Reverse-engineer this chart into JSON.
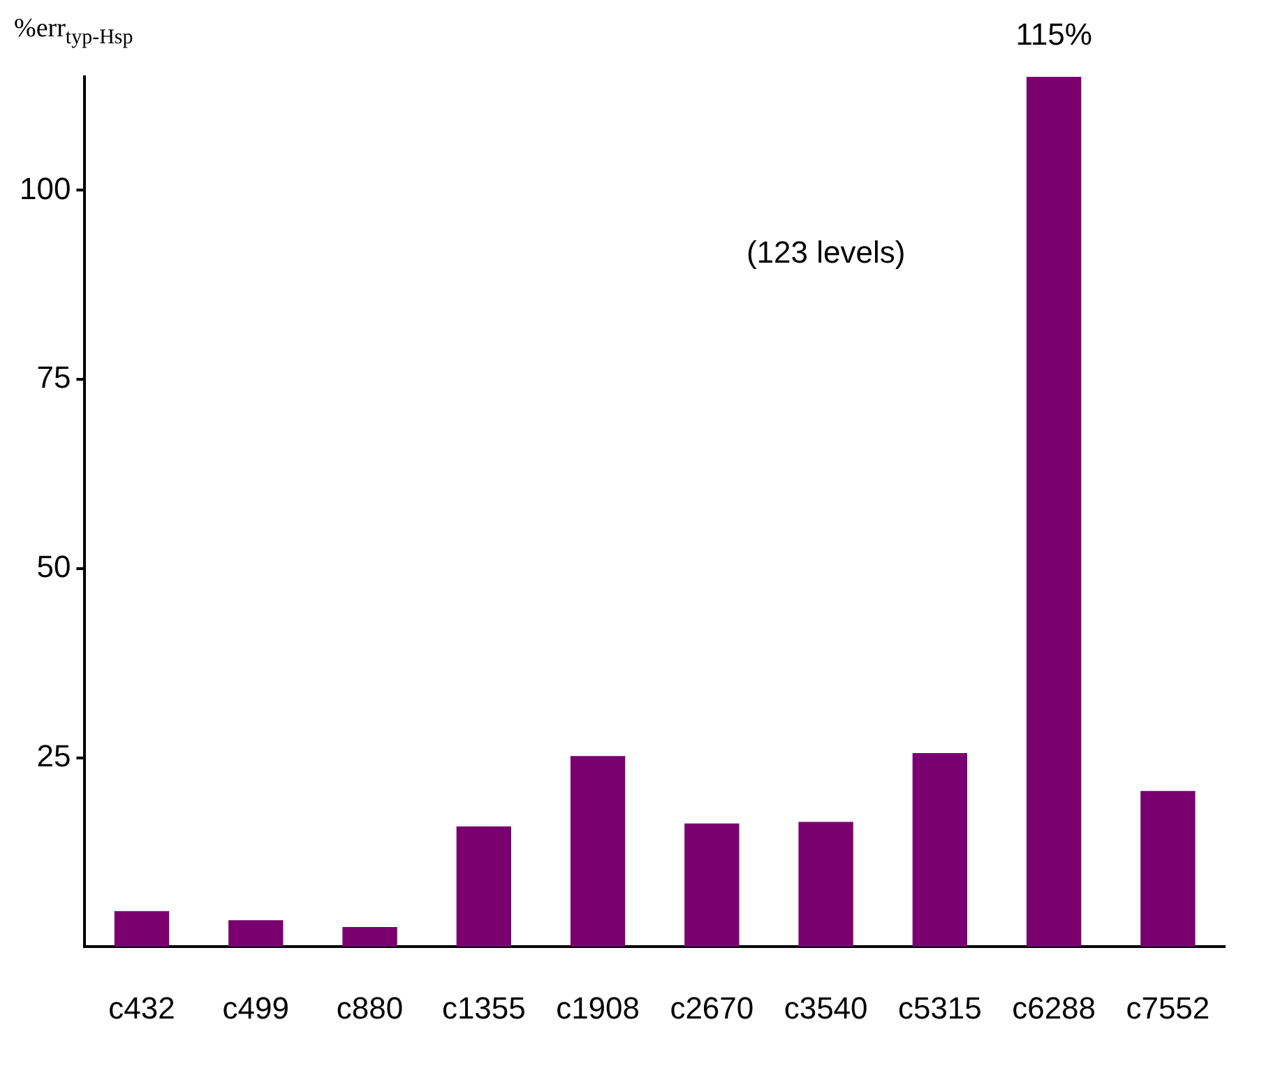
{
  "chart_data": {
    "type": "bar",
    "ylabel": "%err$_{typ-Hsp}$",
    "categories": [
      "c432",
      "c499",
      "c880",
      "c1355",
      "c1908",
      "c2670",
      "c3540",
      "c5315",
      "c6288",
      "c7552"
    ],
    "values": [
      4.7,
      3.5,
      2.6,
      15.9,
      25.2,
      16.3,
      16.5,
      25.6,
      115,
      20.6
    ],
    "value_labels": [
      null,
      null,
      null,
      null,
      null,
      null,
      null,
      null,
      "115%",
      null
    ],
    "color": "#7a0070",
    "ylim": [
      0,
      115
    ],
    "yticks": [
      25,
      50,
      75,
      100
    ],
    "annotations": [
      "(123 levels)"
    ],
    "grid": false,
    "legend": false
  }
}
